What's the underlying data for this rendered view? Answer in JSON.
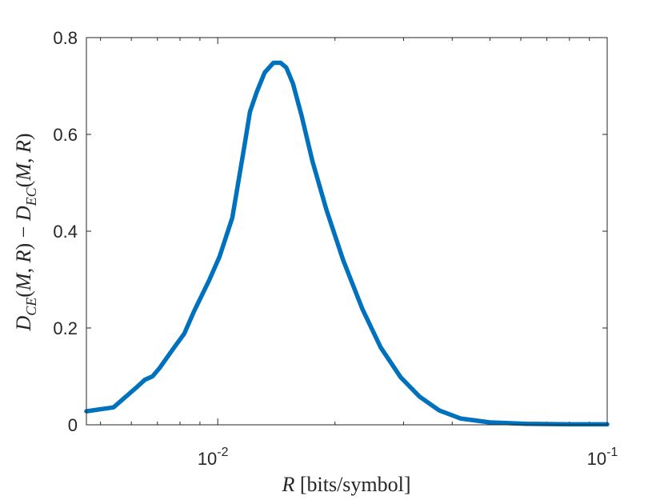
{
  "chart_data": {
    "type": "line",
    "title": "",
    "xlabel": "R [bits/symbol]",
    "ylabel": "D_CE(M,R) − D_EC(M,R)",
    "xscale": "log",
    "xlim": [
      0.0046,
      0.1
    ],
    "ylim": [
      0,
      0.8
    ],
    "grid": false,
    "legend": "none",
    "x_ticks": [
      0.01,
      0.1
    ],
    "x_tick_labels": [
      {
        "base": "10",
        "exp": "-2"
      },
      {
        "base": "10",
        "exp": "-1"
      }
    ],
    "y_ticks": [
      0,
      0.2,
      0.4,
      0.6,
      0.8
    ],
    "y_tick_labels": [
      "0",
      "0.2",
      "0.4",
      "0.6",
      "0.8"
    ],
    "series": [
      {
        "color": "#0072BD",
        "x": [
          0.0046,
          0.0054,
          0.0062,
          0.0065,
          0.0068,
          0.0071,
          0.0077,
          0.0082,
          0.0087,
          0.0095,
          0.0101,
          0.0109,
          0.0117,
          0.0121,
          0.0126,
          0.0132,
          0.0139,
          0.0145,
          0.015,
          0.0156,
          0.0164,
          0.0175,
          0.019,
          0.021,
          0.0235,
          0.0262,
          0.0295,
          0.033,
          0.037,
          0.042,
          0.05,
          0.062,
          0.08,
          0.1
        ],
        "y": [
          0.028,
          0.036,
          0.078,
          0.093,
          0.1,
          0.118,
          0.158,
          0.188,
          0.235,
          0.298,
          0.347,
          0.428,
          0.575,
          0.647,
          0.688,
          0.728,
          0.748,
          0.748,
          0.738,
          0.705,
          0.64,
          0.545,
          0.445,
          0.34,
          0.24,
          0.16,
          0.098,
          0.058,
          0.03,
          0.013,
          0.005,
          0.002,
          0.001,
          0.001
        ]
      }
    ]
  }
}
